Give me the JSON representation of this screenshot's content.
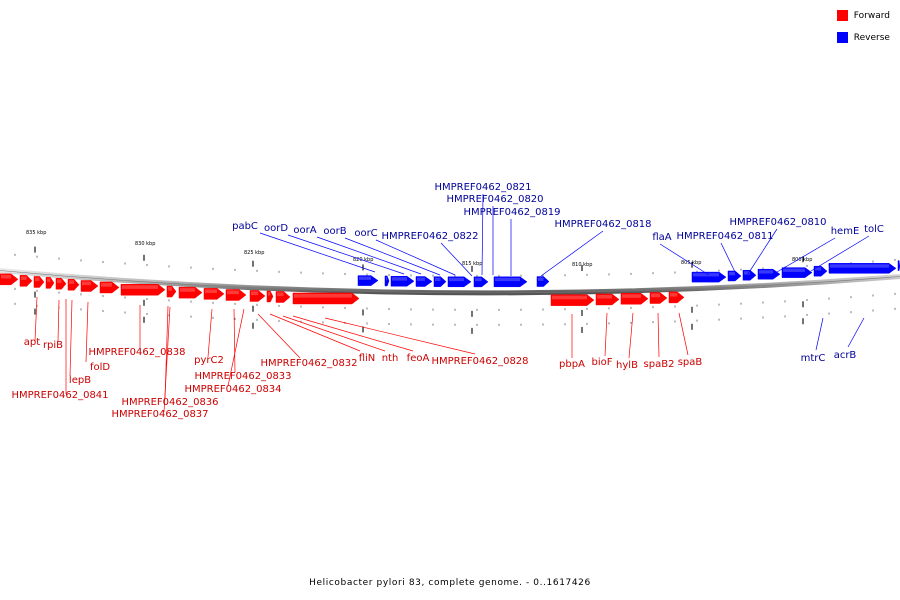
{
  "legend": [
    {
      "label": "Forward",
      "color": "#ff0000"
    },
    {
      "label": "Reverse",
      "color": "#0000ff"
    }
  ],
  "footer": "Helicobacter pylori 83, complete genome. - 0..1617426",
  "scale_labels": [
    "835 kbp",
    "830 kbp",
    "825 kbp",
    "820 kbp",
    "815 kbp",
    "810 kbp",
    "805 kbp",
    "800 kbp"
  ],
  "forward_color": "#ff0000",
  "reverse_color": "#0000ff",
  "forward_genes": [
    "apt",
    "rpiB",
    "lepB",
    "folD",
    "HMPREF0462_0841",
    "HMPREF0462_0838",
    "HMPREF0462_0836",
    "HMPREF0462_0837",
    "pyrC2",
    "HMPREF0462_0833",
    "HMPREF0462_0834",
    "HMPREF0462_0832",
    "fliN",
    "nth",
    "feoA",
    "HMPREF0462_0828",
    "pbpA",
    "bioF",
    "hylB",
    "spaB2",
    "spaB"
  ],
  "reverse_genes": [
    "HMPREF0462_0821",
    "HMPREF0462_0820",
    "HMPREF0462_0819",
    "HMPREF0462_0818",
    "pabC",
    "oorD",
    "oorA",
    "oorB",
    "oorC",
    "HMPREF0462_0822",
    "HMPREF0462_0810",
    "HMPREF0462_0811",
    "flaA",
    "hemE",
    "tolC",
    "mtrC",
    "acrB"
  ]
}
